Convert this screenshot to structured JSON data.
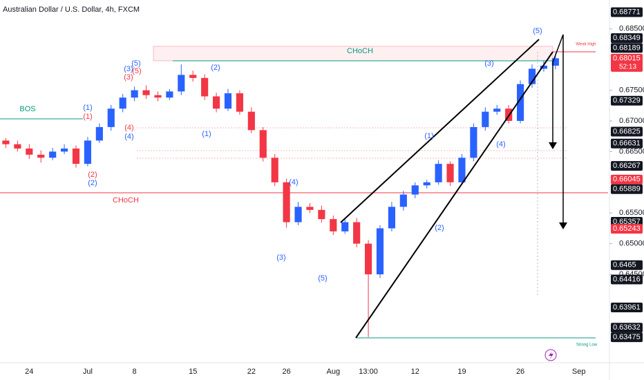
{
  "chart_data": {
    "type": "candlestick",
    "title": "Australian Dollar / U.S. Dollar, 4h, FXCM",
    "up_color": "#2962ff",
    "down_color": "#f23645",
    "categories": [
      null,
      null,
      "24",
      null,
      null,
      null,
      null,
      "Jul",
      null,
      null,
      null,
      "8",
      null,
      null,
      null,
      null,
      "15",
      null,
      null,
      null,
      null,
      "22",
      null,
      null,
      "26",
      null,
      null,
      null,
      "Aug",
      null,
      null,
      "13:00",
      null,
      null,
      null,
      "12",
      null,
      null,
      null,
      "19",
      null,
      null,
      null,
      null,
      "26",
      null,
      null,
      null,
      null,
      "Sep",
      null,
      null
    ],
    "open": [
      0.6668,
      0.6662,
      0.6655,
      0.6645,
      0.664,
      0.665,
      0.6655,
      0.663,
      0.6668,
      0.669,
      0.672,
      0.6738,
      0.675,
      0.6742,
      0.6738,
      0.6748,
      0.6775,
      0.677,
      0.674,
      0.672,
      0.6745,
      0.6715,
      0.6685,
      0.664,
      0.66,
      0.6535,
      0.656,
      0.6555,
      0.654,
      0.652,
      0.6535,
      0.65,
      0.645,
      0.6525,
      0.656,
      0.658,
      0.6595,
      0.66,
      0.663,
      0.66,
      0.664,
      0.669,
      0.6715,
      0.672,
      0.67,
      0.676,
      0.6785,
      0.679,
      null,
      null,
      null,
      null
    ],
    "high": [
      0.6672,
      0.6668,
      0.6662,
      0.6652,
      0.6656,
      0.6662,
      0.666,
      0.6674,
      0.6696,
      0.6726,
      0.6744,
      0.6756,
      0.6758,
      0.6748,
      0.6752,
      0.6792,
      0.6782,
      0.6776,
      0.6746,
      0.6752,
      0.675,
      0.6722,
      0.669,
      0.6646,
      0.6606,
      0.6568,
      0.6566,
      0.6562,
      0.6546,
      0.654,
      0.6542,
      0.6506,
      0.653,
      0.6568,
      0.6586,
      0.66,
      0.6604,
      0.6636,
      0.6634,
      0.6646,
      0.6696,
      0.6722,
      0.6726,
      0.6726,
      0.6766,
      0.6792,
      0.6798,
      0.681,
      null,
      null,
      null,
      null
    ],
    "low": [
      0.6656,
      0.665,
      0.6638,
      0.6632,
      0.6636,
      0.6646,
      0.6624,
      0.6626,
      0.6664,
      0.6684,
      0.6714,
      0.6732,
      0.6736,
      0.6732,
      0.6734,
      0.6742,
      0.6764,
      0.6734,
      0.6714,
      0.6716,
      0.671,
      0.668,
      0.6634,
      0.6594,
      0.6526,
      0.653,
      0.655,
      0.6534,
      0.6514,
      0.6516,
      0.6494,
      0.6348,
      0.6444,
      0.652,
      0.6554,
      0.6574,
      0.659,
      0.6596,
      0.6594,
      0.6596,
      0.6634,
      0.6684,
      0.671,
      0.6696,
      0.6696,
      0.6754,
      0.678,
      0.6784,
      null,
      null,
      null,
      null
    ],
    "close": [
      0.6662,
      0.6655,
      0.6645,
      0.664,
      0.665,
      0.6655,
      0.663,
      0.6668,
      0.669,
      0.672,
      0.6738,
      0.675,
      0.6742,
      0.6738,
      0.6748,
      0.6775,
      0.677,
      0.674,
      0.672,
      0.6745,
      0.6715,
      0.6685,
      0.664,
      0.66,
      0.6535,
      0.656,
      0.6555,
      0.654,
      0.652,
      0.6535,
      0.65,
      0.645,
      0.6525,
      0.656,
      0.658,
      0.6595,
      0.66,
      0.663,
      0.66,
      0.664,
      0.669,
      0.6715,
      0.672,
      0.67,
      0.676,
      0.6785,
      0.679,
      0.6802,
      null,
      null,
      null,
      null
    ],
    "ylim": [
      0.6306,
      0.6897
    ],
    "yticks": [
      {
        "value": 0.685,
        "label": "0.68500"
      },
      {
        "value": 0.675,
        "label": "0.67500"
      },
      {
        "value": 0.67,
        "label": "0.67000"
      },
      {
        "value": 0.665,
        "label": "0.66500"
      },
      {
        "value": 0.655,
        "label": "0.65500"
      },
      {
        "value": 0.65,
        "label": "0.65000"
      },
      {
        "value": 0.645,
        "label": "0.64500"
      }
    ],
    "price_labels": [
      {
        "value": 0.68771,
        "color": "#131722"
      },
      {
        "value": 0.68349,
        "color": "#131722"
      },
      {
        "value": 0.68189,
        "color": "#131722"
      },
      {
        "value": 0.68015,
        "color": "#f23645"
      },
      {
        "value": 0.67329,
        "color": "#131722"
      },
      {
        "value": 0.66825,
        "color": "#131722"
      },
      {
        "value": 0.66631,
        "color": "#131722"
      },
      {
        "value": 0.66267,
        "color": "#131722"
      },
      {
        "value": 0.66045,
        "color": "#f23645"
      },
      {
        "value": 0.65889,
        "color": "#131722"
      },
      {
        "value": 0.65357,
        "color": "#131722"
      },
      {
        "value": 0.65243,
        "color": "#f23645"
      },
      {
        "value": 0.6465,
        "color": "#131722"
      },
      {
        "value": 0.64416,
        "color": "#131722"
      },
      {
        "value": 0.63961,
        "color": "#131722"
      },
      {
        "value": 0.63632,
        "color": "#131722"
      },
      {
        "value": 0.63475,
        "color": "#131722"
      }
    ],
    "countdown": "52:13",
    "annotations": [
      {
        "text": "(5)",
        "color": "#2962ff"
      },
      {
        "text": "(3)",
        "color": "#2962ff"
      },
      {
        "text": "(1)",
        "color": "#2962ff"
      },
      {
        "text": "(4)",
        "color": "#2962ff"
      },
      {
        "text": "(2)",
        "color": "#2962ff"
      },
      {
        "text": "(5)",
        "color": "#2962ff"
      },
      {
        "text": "(3)",
        "color": "#2962ff"
      },
      {
        "text": "(4)",
        "color": "#2962ff"
      },
      {
        "text": "(1)",
        "color": "#2962ff"
      },
      {
        "text": "(2)",
        "color": "#2962ff"
      },
      {
        "text": "(5)",
        "color": "#2962ff"
      },
      {
        "text": "(3)",
        "color": "#2962ff"
      },
      {
        "text": "(1)",
        "color": "#2962ff"
      },
      {
        "text": "(2)",
        "color": "#2962ff"
      },
      {
        "text": "(4)",
        "color": "#2962ff"
      },
      {
        "text": "(5)",
        "color": "#f23645"
      },
      {
        "text": "(3)",
        "color": "#f23645"
      },
      {
        "text": "(1)",
        "color": "#f23645"
      },
      {
        "text": "(2)",
        "color": "#f23645"
      },
      {
        "text": "(4)",
        "color": "#f23645"
      },
      {
        "text": "CHoCH",
        "color": "#089981"
      },
      {
        "text": "CHoCH",
        "color": "#f23645"
      },
      {
        "text": "BOS",
        "color": "#089981"
      },
      {
        "text": "Weak High",
        "color": "#f23645"
      },
      {
        "text": "Strong Low",
        "color": "#089981"
      }
    ]
  }
}
